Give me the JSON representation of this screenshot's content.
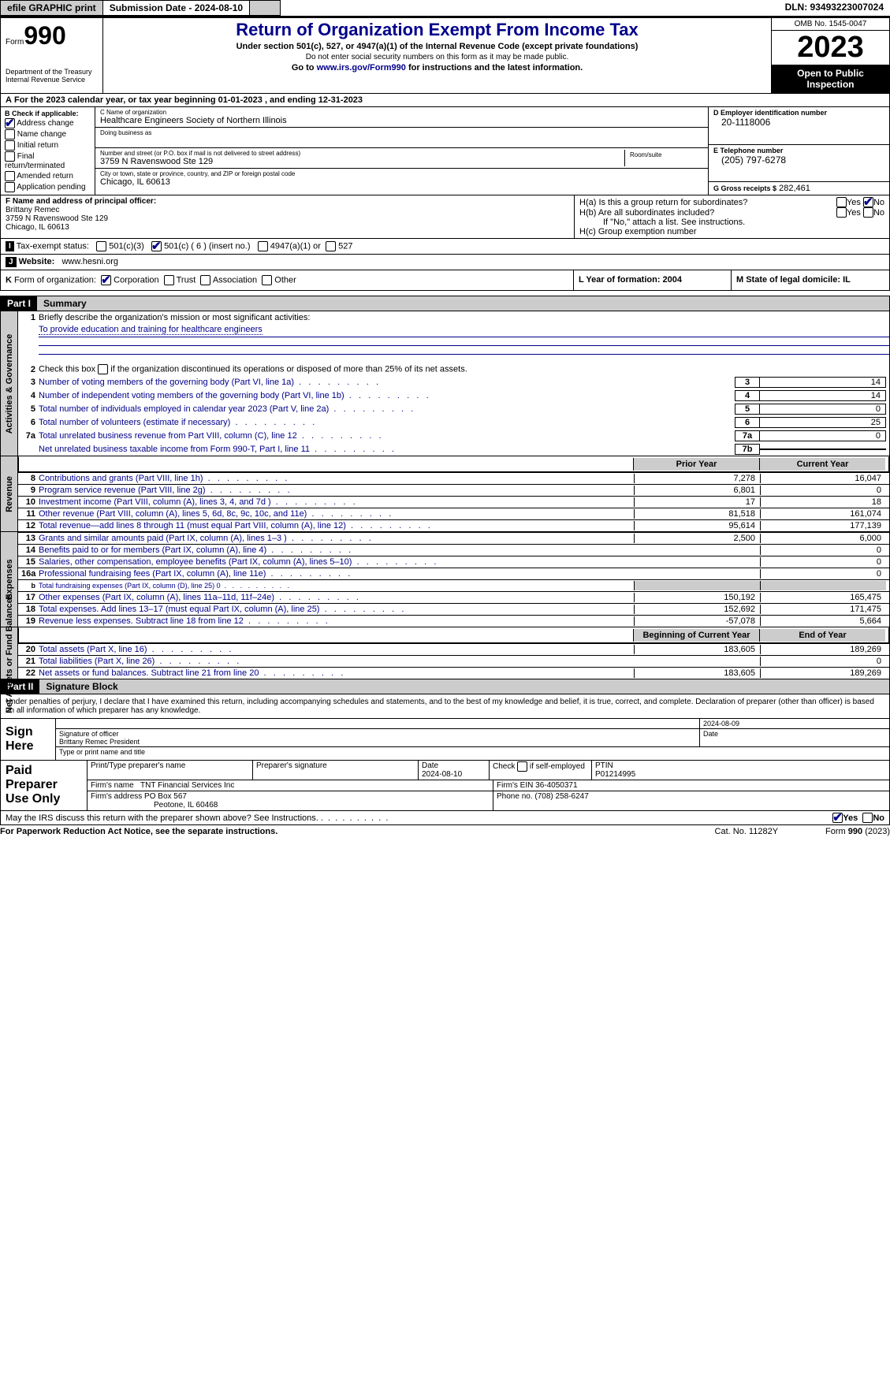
{
  "topbar": {
    "efile": "efile GRAPHIC print",
    "submission": "Submission Date - 2024-08-10",
    "dln": "DLN: 93493223007024"
  },
  "header": {
    "form_label": "Form",
    "form_no": "990",
    "title": "Return of Organization Exempt From Income Tax",
    "subtitle": "Under section 501(c), 527, or 4947(a)(1) of the Internal Revenue Code (except private foundations)",
    "nossn": "Do not enter social security numbers on this form as it may be made public.",
    "goto": "Go to www.irs.gov/Form990 for instructions and the latest information.",
    "goto_link": "www.irs.gov/Form990",
    "dept": "Department of the Treasury",
    "irs": "Internal Revenue Service",
    "omb": "OMB No. 1545-0047",
    "year": "2023",
    "open": "Open to Public Inspection"
  },
  "lineA": "For the 2023 calendar year, or tax year beginning 01-01-2023    , and ending 12-31-2023",
  "boxB": {
    "label": "B Check if applicable:",
    "items": [
      "Address change",
      "Name change",
      "Initial return",
      "Final return/terminated",
      "Amended return",
      "Application pending"
    ],
    "checked_idx": 0
  },
  "boxC": {
    "name_label": "C Name of organization",
    "name": "Healthcare Engineers Society of Northern Illinois",
    "dba_label": "Doing business as",
    "dba": "",
    "addr_label": "Number and street (or P.O. box if mail is not delivered to street address)",
    "room_label": "Room/suite",
    "addr": "3759 N Ravenswood Ste 129",
    "city_label": "City or town, state or province, country, and ZIP or foreign postal code",
    "city": "Chicago, IL  60613"
  },
  "boxD": {
    "label": "D Employer identification number",
    "val": "20-1118006"
  },
  "boxE": {
    "label": "E Telephone number",
    "val": "(205) 797-6278"
  },
  "boxG": {
    "label": "G Gross receipts $",
    "val": "282,461"
  },
  "boxF": {
    "label": "F  Name and address of principal officer:",
    "name": "Brittany Remec",
    "addr1": "3759 N Ravenswood Ste 129",
    "addr2": "Chicago, IL  60613"
  },
  "boxH": {
    "a": "H(a)  Is this a group return for subordinates?",
    "b": "H(b)  Are all subordinates included?",
    "note": "If \"No,\" attach a list. See instructions.",
    "c": "H(c)  Group exemption number",
    "yes": "Yes",
    "no": "No"
  },
  "boxI": {
    "label": "I",
    "text": "Tax-exempt status:",
    "o1": "501(c)(3)",
    "o2": "501(c) ( 6 ) (insert no.)",
    "o3": "4947(a)(1) or",
    "o4": "527"
  },
  "boxJ": {
    "label": "J",
    "text": "Website:",
    "val": "www.hesni.org"
  },
  "boxK": {
    "label": "K",
    "text": "Form of organization:",
    "o1": "Corporation",
    "o2": "Trust",
    "o3": "Association",
    "o4": "Other"
  },
  "boxL": {
    "text": "L Year of formation: 2004"
  },
  "boxM": {
    "text": "M State of legal domicile: IL"
  },
  "part1": {
    "label": "Part I",
    "title": "Summary"
  },
  "summary": {
    "mission_label": "Briefly describe the organization's mission or most significant activities:",
    "mission": "To provide education and training for healthcare engineers",
    "line2": "Check this box        if the organization discontinued its operations or disposed of more than 25% of its net assets.",
    "prior_hdr": "Prior Year",
    "current_hdr": "Current Year",
    "begin_hdr": "Beginning of Current Year",
    "end_hdr": "End of Year",
    "lines_gov": [
      {
        "n": "3",
        "t": "Number of voting members of the governing body (Part VI, line 1a)",
        "r": "3",
        "v": "14"
      },
      {
        "n": "4",
        "t": "Number of independent voting members of the governing body (Part VI, line 1b)",
        "r": "4",
        "v": "14"
      },
      {
        "n": "5",
        "t": "Total number of individuals employed in calendar year 2023 (Part V, line 2a)",
        "r": "5",
        "v": "0"
      },
      {
        "n": "6",
        "t": "Total number of volunteers (estimate if necessary)",
        "r": "6",
        "v": "25"
      },
      {
        "n": "7a",
        "t": "Total unrelated business revenue from Part VIII, column (C), line 12",
        "r": "7a",
        "v": "0"
      },
      {
        "n": "",
        "t": "Net unrelated business taxable income from Form 990-T, Part I, line 11",
        "r": "7b",
        "v": ""
      }
    ],
    "lines_rev": [
      {
        "n": "8",
        "t": "Contributions and grants (Part VIII, line 1h)",
        "p": "7,278",
        "c": "16,047"
      },
      {
        "n": "9",
        "t": "Program service revenue (Part VIII, line 2g)",
        "p": "6,801",
        "c": "0"
      },
      {
        "n": "10",
        "t": "Investment income (Part VIII, column (A), lines 3, 4, and 7d )",
        "p": "17",
        "c": "18"
      },
      {
        "n": "11",
        "t": "Other revenue (Part VIII, column (A), lines 5, 6d, 8c, 9c, 10c, and 11e)",
        "p": "81,518",
        "c": "161,074"
      },
      {
        "n": "12",
        "t": "Total revenue—add lines 8 through 11 (must equal Part VIII, column (A), line 12)",
        "p": "95,614",
        "c": "177,139"
      }
    ],
    "lines_exp": [
      {
        "n": "13",
        "t": "Grants and similar amounts paid (Part IX, column (A), lines 1–3 )",
        "p": "2,500",
        "c": "6,000"
      },
      {
        "n": "14",
        "t": "Benefits paid to or for members (Part IX, column (A), line 4)",
        "p": "",
        "c": "0"
      },
      {
        "n": "15",
        "t": "Salaries, other compensation, employee benefits (Part IX, column (A), lines 5–10)",
        "p": "",
        "c": "0"
      },
      {
        "n": "16a",
        "t": "Professional fundraising fees (Part IX, column (A), line 11e)",
        "p": "",
        "c": "0"
      },
      {
        "n": "b",
        "t": "Total fundraising expenses (Part IX, column (D), line 25) 0",
        "p": "GRAY",
        "c": "GRAY",
        "small": true
      },
      {
        "n": "17",
        "t": "Other expenses (Part IX, column (A), lines 11a–11d, 11f–24e)",
        "p": "150,192",
        "c": "165,475"
      },
      {
        "n": "18",
        "t": "Total expenses. Add lines 13–17 (must equal Part IX, column (A), line 25)",
        "p": "152,692",
        "c": "171,475"
      },
      {
        "n": "19",
        "t": "Revenue less expenses. Subtract line 18 from line 12",
        "p": "-57,078",
        "c": "5,664"
      }
    ],
    "lines_na": [
      {
        "n": "20",
        "t": "Total assets (Part X, line 16)",
        "p": "183,605",
        "c": "189,269"
      },
      {
        "n": "21",
        "t": "Total liabilities (Part X, line 26)",
        "p": "",
        "c": "0"
      },
      {
        "n": "22",
        "t": "Net assets or fund balances. Subtract line 21 from line 20",
        "p": "183,605",
        "c": "189,269"
      }
    ]
  },
  "vtabs": {
    "gov": "Activities & Governance",
    "rev": "Revenue",
    "exp": "Expenses",
    "na": "Net Assets or Fund Balances"
  },
  "part2": {
    "label": "Part II",
    "title": "Signature Block"
  },
  "perjury": "Under penalties of perjury, I declare that I have examined this return, including accompanying schedules and statements, and to the best of my knowledge and belief, it is true, correct, and complete. Declaration of preparer (other than officer) is based on all information of which preparer has any knowledge.",
  "sign": {
    "here": "Sign Here",
    "sig_officer": "Signature of officer",
    "officer": "Brittany Remec President",
    "typeprint": "Type or print name and title",
    "date_label": "Date",
    "date": "2024-08-09"
  },
  "paid": {
    "label": "Paid Preparer Use Only",
    "printtype": "Print/Type preparer's name",
    "prepsig": "Preparer's signature",
    "date_label": "Date",
    "date": "2024-08-10",
    "check": "Check         if self-employed",
    "ptin_label": "PTIN",
    "ptin": "P01214995",
    "firmname_label": "Firm's name",
    "firmname": "TNT Financial Services Inc",
    "firmein_label": "Firm's EIN",
    "firmein": "36-4050371",
    "firmaddr_label": "Firm's address",
    "firmaddr1": "PO Box 567",
    "firmaddr2": "Peotone, IL  60468",
    "phone_label": "Phone no.",
    "phone": "(708) 258-6247"
  },
  "discuss": "May the IRS discuss this return with the preparer shown above? See Instructions.",
  "footer": {
    "pra": "For Paperwork Reduction Act Notice, see the separate instructions.",
    "cat": "Cat. No. 11282Y",
    "form": "Form 990 (2023)"
  }
}
